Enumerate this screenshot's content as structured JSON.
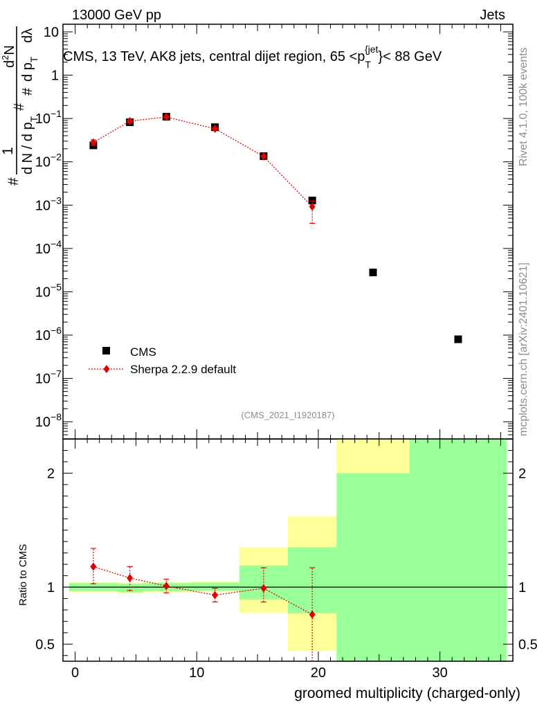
{
  "header": {
    "left": "13000 GeV pp",
    "right": "Jets",
    "title": "CMS, 13 TeV, AK8 jets, central dijet region, 65 <p",
    "title_sub": "T",
    "title_sup": "{jet",
    "title_end": "}< 88 GeV"
  },
  "side": {
    "rivet": "Rivet 4.1.0,  100k events",
    "mcplots": "mcplots.cern.ch [arXiv:2401.10621]"
  },
  "analysis_tag": "(CMS_2021_I1920187)",
  "ylabel_main": {
    "one": "1",
    "hash_n": "#",
    "dN_dpT": "d N / d p",
    "T1": "T",
    "hash2": "#",
    "d2N": "d",
    "sup2": "2",
    "N": "N",
    "hash3": "#",
    "dpT_dl": "d p",
    "T2": "T",
    "dl": "dλ"
  },
  "ylabel_ratio": "Ratio to CMS",
  "xlabel": "groomed multiplicity (charged-only)",
  "chart_data": [
    {
      "type": "scatter",
      "panel": "main",
      "yscale": "log",
      "xlim": [
        -1,
        36
      ],
      "ylim": [
        4e-09,
        15
      ],
      "yticks": [
        {
          "value": 10,
          "base": "10",
          "exp": ""
        },
        {
          "value": 1,
          "base": "1",
          "exp": ""
        },
        {
          "value": 0.1,
          "base": "10",
          "exp": "−1"
        },
        {
          "value": 0.01,
          "base": "10",
          "exp": "−2"
        },
        {
          "value": 0.001,
          "base": "10",
          "exp": "−3"
        },
        {
          "value": 0.0001,
          "base": "10",
          "exp": "−4"
        },
        {
          "value": 1e-05,
          "base": "10",
          "exp": "−5"
        },
        {
          "value": 1e-06,
          "base": "10",
          "exp": "−6"
        },
        {
          "value": 1e-07,
          "base": "10",
          "exp": "−7"
        },
        {
          "value": 1e-08,
          "base": "10",
          "exp": "−8"
        }
      ],
      "legend": [
        {
          "label": "CMS",
          "marker": "square",
          "color": "#000000"
        },
        {
          "label": "Sherpa 2.2.9 default",
          "marker": "diamond",
          "color": "#e00000"
        }
      ],
      "series": [
        {
          "name": "CMS",
          "color": "#000000",
          "x": [
            1.5,
            4.5,
            7.5,
            11.5,
            15.5,
            19.5,
            24.5,
            31.5
          ],
          "y": [
            0.024,
            0.082,
            0.11,
            0.063,
            0.0135,
            0.00128,
            2.8e-05,
            8e-07
          ]
        },
        {
          "name": "Sherpa 2.2.9 default",
          "color": "#e00000",
          "x": [
            1.5,
            4.5,
            7.5,
            11.5,
            15.5,
            19.5
          ],
          "y": [
            0.028,
            0.087,
            0.108,
            0.058,
            0.0133,
            0.00092
          ],
          "yerr_lo": [
            0.024,
            0.082,
            0.104,
            0.055,
            0.0128,
            0.00038
          ],
          "yerr_hi": [
            0.032,
            0.092,
            0.113,
            0.061,
            0.0139,
            0.00125
          ]
        }
      ]
    },
    {
      "type": "scatter",
      "panel": "ratio",
      "xlim": [
        -1,
        36
      ],
      "ylim": [
        0.35,
        2.3
      ],
      "yticks": [
        {
          "value": 0.5,
          "label": "0.5"
        },
        {
          "value": 1,
          "label": "1"
        },
        {
          "value": 2,
          "label": "2"
        }
      ],
      "xticks": [
        {
          "value": 0,
          "label": "0"
        },
        {
          "value": 10,
          "label": "10"
        },
        {
          "value": 20,
          "label": "20"
        },
        {
          "value": 30,
          "label": "30"
        }
      ],
      "bands": [
        {
          "x0": -0.5,
          "x1": 3.5,
          "ylo": 0.955,
          "yhi": 1.045,
          "slo": 0.965,
          "shi": 1.035
        },
        {
          "x0": 3.5,
          "x1": 5.5,
          "ylo": 0.945,
          "yhi": 1.04,
          "slo": 0.955,
          "shi": 1.03
        },
        {
          "x0": 5.5,
          "x1": 9.5,
          "ylo": 0.955,
          "yhi": 1.045,
          "slo": 0.965,
          "shi": 1.035
        },
        {
          "x0": 9.5,
          "x1": 13.5,
          "ylo": 0.96,
          "yhi": 1.05,
          "slo": 0.97,
          "shi": 1.04
        },
        {
          "x0": 13.5,
          "x1": 17.5,
          "ylo": 0.77,
          "yhi": 1.35,
          "slo": 0.89,
          "shi": 1.19
        },
        {
          "x0": 17.5,
          "x1": 21.5,
          "ylo": 0.44,
          "yhi": 1.62,
          "slo": 0.77,
          "shi": 1.35
        },
        {
          "x0": 21.5,
          "x1": 27.5,
          "ylo": 0.35,
          "yhi": 2.3,
          "slo": 0.35,
          "shi": 2.0
        },
        {
          "x0": 27.5,
          "x1": 35.5,
          "ylo": 0.35,
          "yhi": 2.3,
          "slo": 0.35,
          "shi": 2.3
        }
      ],
      "band_colors": {
        "stat": "#99ff99",
        "total": "#ffff99"
      },
      "series": [
        {
          "name": "Sherpa 2.2.9 default / CMS",
          "color": "#e00000",
          "x": [
            1.5,
            4.5,
            7.5,
            11.5,
            15.5,
            19.5
          ],
          "y": [
            1.18,
            1.08,
            1.01,
            0.93,
            0.99,
            0.76
          ],
          "yerr_lo": [
            1.03,
            0.97,
            0.95,
            0.87,
            0.87,
            0.35
          ],
          "yerr_hi": [
            1.34,
            1.18,
            1.07,
            0.99,
            1.17,
            1.17
          ]
        }
      ]
    }
  ]
}
